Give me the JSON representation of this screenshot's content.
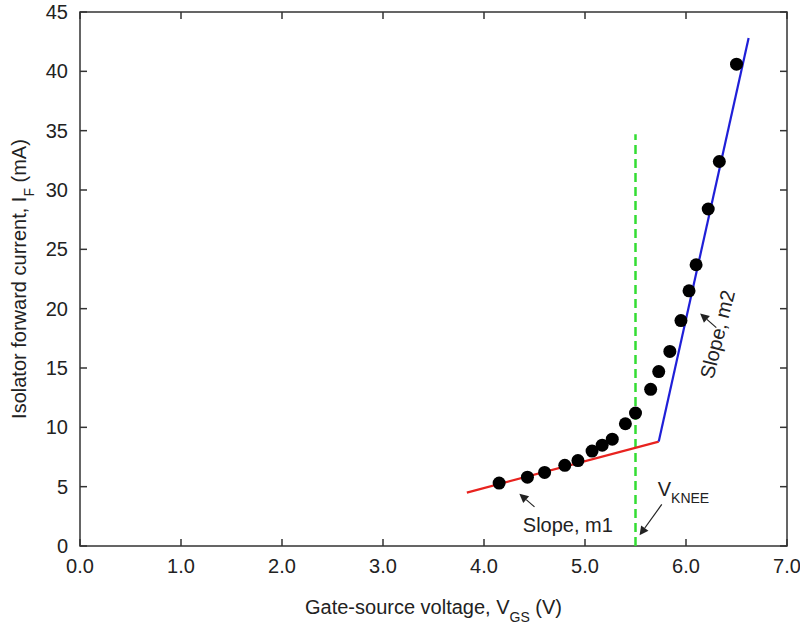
{
  "chart_data": {
    "type": "scatter",
    "x_label": [
      {
        "text": "Gate-source voltage, V"
      },
      {
        "subscript": "GS"
      },
      {
        "text": " (V)"
      }
    ],
    "y_label": [
      {
        "text": "Isolator forward current, I"
      },
      {
        "subscript": "F"
      },
      {
        "text": " (mA)"
      }
    ],
    "xlim": [
      0,
      7
    ],
    "ylim": [
      0,
      45
    ],
    "xticks": [
      {
        "value": 0,
        "label": "0.0"
      },
      {
        "value": 1,
        "label": "1.0"
      },
      {
        "value": 2,
        "label": "2.0"
      },
      {
        "value": 3,
        "label": "3.0"
      },
      {
        "value": 4,
        "label": "4.0"
      },
      {
        "value": 5,
        "label": "5.0"
      },
      {
        "value": 6,
        "label": "6.0"
      },
      {
        "value": 7,
        "label": "7.0"
      }
    ],
    "yticks": [
      0,
      5,
      10,
      15,
      20,
      25,
      30,
      35,
      40,
      45
    ],
    "grid": false,
    "series": [
      {
        "type": "scatter",
        "color": "#000000",
        "marker": "circle",
        "x": [
          4.15,
          4.43,
          4.6,
          4.8,
          4.93,
          5.07,
          5.17,
          5.27,
          5.4,
          5.5,
          5.65,
          5.73,
          5.84,
          5.95,
          6.03,
          6.1,
          6.22,
          6.33,
          6.5
        ],
        "values": [
          5.3,
          5.8,
          6.2,
          6.8,
          7.2,
          8.0,
          8.5,
          9.0,
          10.3,
          11.2,
          13.2,
          14.7,
          16.4,
          19.0,
          21.5,
          23.7,
          28.4,
          32.4,
          40.6
        ]
      },
      {
        "type": "line",
        "color": "#e8231f",
        "line_style": "solid",
        "x": [
          3.83,
          5.73
        ],
        "values": [
          4.5,
          8.8
        ]
      },
      {
        "type": "line",
        "color": "#1f1fd8",
        "line_style": "solid",
        "x": [
          5.73,
          6.62
        ],
        "values": [
          8.8,
          42.8
        ]
      }
    ],
    "reference_line": {
      "x": 5.5,
      "y_end": 34.7,
      "color": "#33dd33",
      "line_style": "dashed"
    },
    "annotations": [
      {
        "text": [
          {
            "text": "Slope, m1"
          }
        ],
        "x": 4.83,
        "y": 1.6,
        "arrow_from": [
          4.5,
          3.3
        ],
        "arrow_to": [
          4.35,
          4.4
        ]
      },
      {
        "text": [
          {
            "text": "Slope, m2"
          }
        ],
        "x": 6.33,
        "y": 17.8,
        "arrow_from": [
          6.3,
          18.4
        ],
        "arrow_to": [
          6.14,
          19.6
        ]
      },
      {
        "text": [
          {
            "text": "V"
          },
          {
            "subscript": "KNEE"
          }
        ],
        "x": 5.72,
        "y": 4.6,
        "arrow_from": [
          5.76,
          3.5
        ],
        "arrow_to": [
          5.54,
          0.9
        ]
      }
    ]
  }
}
